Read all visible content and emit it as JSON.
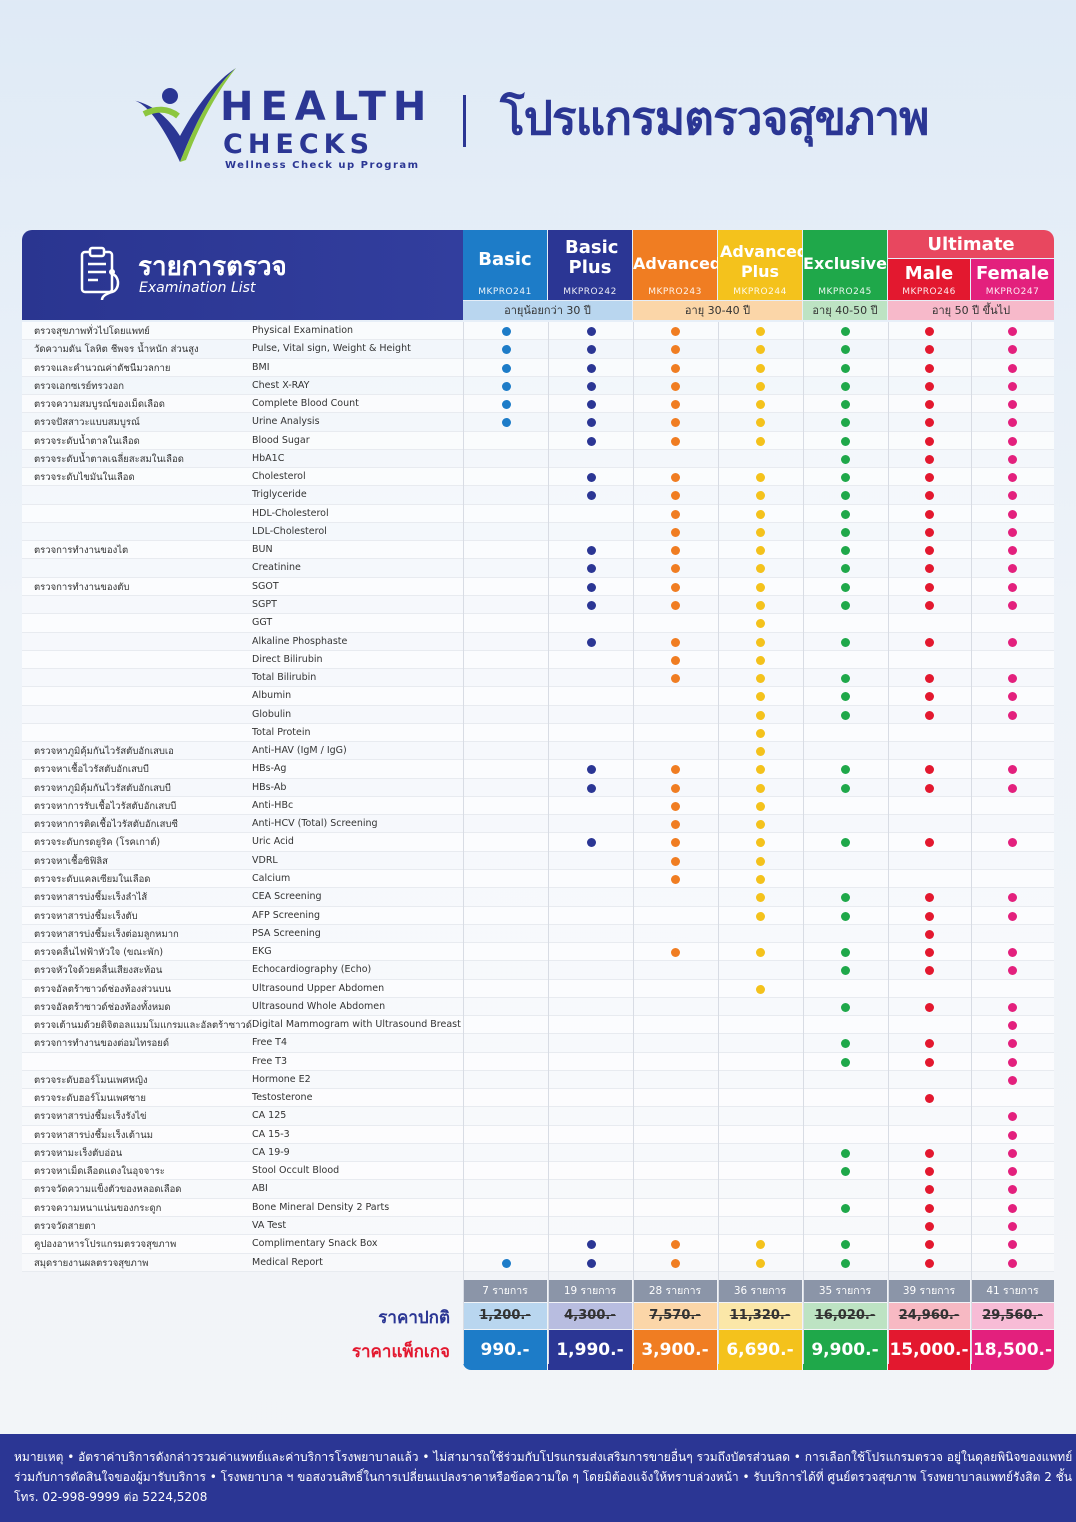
{
  "header": {
    "logo_word1": "HEALTH",
    "logo_word2": "CHECKS",
    "logo_sub": "Wellness Check up Program",
    "title": "โปรแกรมตรวจสุขภาพ"
  },
  "list_header": {
    "title": "รายการตรวจ",
    "subtitle": "Examination List"
  },
  "colors": {
    "basic": "#1d7cc8",
    "basic_plus": "#2b3694",
    "advanced": "#f07d22",
    "advanced_plus": "#f4c21c",
    "exclusive": "#1fa84a",
    "male": "#e3182f",
    "female": "#e3207d"
  },
  "ultimate_label": "Ultimate",
  "packages": [
    {
      "name": "Basic",
      "code": "MKPRO241"
    },
    {
      "name": "Basic Plus",
      "code": "MKPRO242"
    },
    {
      "name": "Advanced",
      "code": "MKPRO243"
    },
    {
      "name": "Advanced Plus",
      "code": "MKPRO244"
    },
    {
      "name": "Exclusive",
      "code": "MKPRO245"
    },
    {
      "name": "Male",
      "code": "MKPRO246"
    },
    {
      "name": "Female",
      "code": "MKPRO247"
    }
  ],
  "age_groups": [
    "อายุน้อยกว่า 30 ปี",
    "อายุ 30-40 ปี",
    "อายุ 40-50 ปี",
    "อายุ 50 ปี ขึ้นไป"
  ],
  "rows": [
    {
      "th": "ตรวจสุขภาพทั่วไปโดยแพทย์",
      "en": "Physical Examination",
      "p": [
        1,
        1,
        1,
        1,
        1,
        1,
        1
      ]
    },
    {
      "th": "วัดความดัน โลหิต ชีพจร น้ำหนัก ส่วนสูง",
      "en": "Pulse, Vital sign, Weight & Height",
      "p": [
        1,
        1,
        1,
        1,
        1,
        1,
        1
      ]
    },
    {
      "th": "ตรวจและคำนวณค่าดัชนีมวลกาย",
      "en": "BMI",
      "p": [
        1,
        1,
        1,
        1,
        1,
        1,
        1
      ]
    },
    {
      "th": "ตรวจเอกซเรย์ทรวงอก",
      "en": "Chest X-RAY",
      "p": [
        1,
        1,
        1,
        1,
        1,
        1,
        1
      ]
    },
    {
      "th": "ตรวจความสมบูรณ์ของเม็ดเลือด",
      "en": "Complete Blood Count",
      "p": [
        1,
        1,
        1,
        1,
        1,
        1,
        1
      ]
    },
    {
      "th": "ตรวจปัสสาวะแบบสมบูรณ์",
      "en": "Urine Analysis",
      "p": [
        1,
        1,
        1,
        1,
        1,
        1,
        1
      ]
    },
    {
      "th": "ตรวจระดับน้ำตาลในเลือด",
      "en": "Blood Sugar",
      "p": [
        0,
        1,
        1,
        1,
        1,
        1,
        1
      ]
    },
    {
      "th": "ตรวจระดับน้ำตาลเฉลี่ยสะสมในเลือด",
      "en": "HbA1C",
      "p": [
        0,
        0,
        0,
        0,
        1,
        1,
        1
      ]
    },
    {
      "th": "ตรวจระดับไขมันในเลือด",
      "en": "Cholesterol",
      "p": [
        0,
        1,
        1,
        1,
        1,
        1,
        1
      ]
    },
    {
      "th": "",
      "en": "Triglyceride",
      "p": [
        0,
        1,
        1,
        1,
        1,
        1,
        1
      ]
    },
    {
      "th": "",
      "en": "HDL-Cholesterol",
      "p": [
        0,
        0,
        1,
        1,
        1,
        1,
        1
      ]
    },
    {
      "th": "",
      "en": "LDL-Cholesterol",
      "p": [
        0,
        0,
        1,
        1,
        1,
        1,
        1
      ]
    },
    {
      "th": "ตรวจการทำงานของไต",
      "en": "BUN",
      "p": [
        0,
        1,
        1,
        1,
        1,
        1,
        1
      ]
    },
    {
      "th": "",
      "en": "Creatinine",
      "p": [
        0,
        1,
        1,
        1,
        1,
        1,
        1
      ]
    },
    {
      "th": "ตรวจการทำงานของตับ",
      "en": "SGOT",
      "p": [
        0,
        1,
        1,
        1,
        1,
        1,
        1
      ]
    },
    {
      "th": "",
      "en": "SGPT",
      "p": [
        0,
        1,
        1,
        1,
        1,
        1,
        1
      ]
    },
    {
      "th": "",
      "en": "GGT",
      "p": [
        0,
        0,
        0,
        1,
        0,
        0,
        0
      ]
    },
    {
      "th": "",
      "en": "Alkaline Phosphaste",
      "p": [
        0,
        1,
        1,
        1,
        1,
        1,
        1
      ]
    },
    {
      "th": "",
      "en": "Direct Bilirubin",
      "p": [
        0,
        0,
        1,
        1,
        0,
        0,
        0
      ]
    },
    {
      "th": "",
      "en": "Total Bilirubin",
      "p": [
        0,
        0,
        1,
        1,
        1,
        1,
        1
      ]
    },
    {
      "th": "",
      "en": "Albumin",
      "p": [
        0,
        0,
        0,
        1,
        1,
        1,
        1
      ]
    },
    {
      "th": "",
      "en": "Globulin",
      "p": [
        0,
        0,
        0,
        1,
        1,
        1,
        1
      ]
    },
    {
      "th": "",
      "en": "Total Protein",
      "p": [
        0,
        0,
        0,
        1,
        0,
        0,
        0
      ]
    },
    {
      "th": "ตรวจหาภูมิคุ้มกันไวรัสตับอักเสบเอ",
      "en": "Anti-HAV (IgM / IgG)",
      "p": [
        0,
        0,
        0,
        1,
        0,
        0,
        0
      ]
    },
    {
      "th": "ตรวจหาเชื้อไวรัสตับอักเสบบี",
      "en": "HBs-Ag",
      "p": [
        0,
        1,
        1,
        1,
        1,
        1,
        1
      ]
    },
    {
      "th": "ตรวจหาภูมิคุ้มกันไวรัสตับอักเสบบี",
      "en": "HBs-Ab",
      "p": [
        0,
        1,
        1,
        1,
        1,
        1,
        1
      ]
    },
    {
      "th": "ตรวจหาการรับเชื้อไวรัสตับอักเสบบี",
      "en": "Anti-HBc",
      "p": [
        0,
        0,
        1,
        1,
        0,
        0,
        0
      ]
    },
    {
      "th": "ตรวจหาการติดเชื้อไวรัสตับอักเสบซี",
      "en": "Anti-HCV (Total) Screening",
      "p": [
        0,
        0,
        1,
        1,
        0,
        0,
        0
      ]
    },
    {
      "th": "ตรวจระดับกรดยูริค (โรคเกาต์)",
      "en": "Uric Acid",
      "p": [
        0,
        1,
        1,
        1,
        1,
        1,
        1
      ]
    },
    {
      "th": "ตรวจหาเชื้อซิฟิลิส",
      "en": "VDRL",
      "p": [
        0,
        0,
        1,
        1,
        0,
        0,
        0
      ]
    },
    {
      "th": "ตรวจระดับแคลเซียมในเลือด",
      "en": "Calcium",
      "p": [
        0,
        0,
        1,
        1,
        0,
        0,
        0
      ]
    },
    {
      "th": "ตรวจหาสารบ่งชี้มะเร็งลำไส้",
      "en": "CEA Screening",
      "p": [
        0,
        0,
        0,
        1,
        1,
        1,
        1
      ]
    },
    {
      "th": "ตรวจหาสารบ่งชี้มะเร็งตับ",
      "en": "AFP Screening",
      "p": [
        0,
        0,
        0,
        1,
        1,
        1,
        1
      ]
    },
    {
      "th": "ตรวจหาสารบ่งชี้มะเร็งต่อมลูกหมาก",
      "en": "PSA Screening",
      "p": [
        0,
        0,
        0,
        0,
        0,
        1,
        0
      ]
    },
    {
      "th": "ตรวจคลื่นไฟฟ้าหัวใจ (ขณะพัก)",
      "en": "EKG",
      "p": [
        0,
        0,
        1,
        1,
        1,
        1,
        1
      ]
    },
    {
      "th": "ตรวจหัวใจด้วยคลื่นเสียงสะท้อน",
      "en": "Echocardiography (Echo)",
      "p": [
        0,
        0,
        0,
        0,
        1,
        1,
        1
      ]
    },
    {
      "th": "ตรวจอัลตร้าซาวด์ช่องท้องส่วนบน",
      "en": "Ultrasound Upper Abdomen",
      "p": [
        0,
        0,
        0,
        1,
        0,
        0,
        0
      ]
    },
    {
      "th": "ตรวจอัลตร้าซาวด์ช่องท้องทั้งหมด",
      "en": "Ultrasound Whole Abdomen",
      "p": [
        0,
        0,
        0,
        0,
        1,
        1,
        1
      ]
    },
    {
      "th": "ตรวจเต้านมด้วยดิจิตอลแมมโมแกรมและอัลตร้าซาวด์",
      "en": "Digital Mammogram with Ultrasound Breast",
      "p": [
        0,
        0,
        0,
        0,
        0,
        0,
        1
      ]
    },
    {
      "th": "ตรวจการทำงานของต่อมไทรอยด์",
      "en": "Free T4",
      "p": [
        0,
        0,
        0,
        0,
        1,
        1,
        1
      ]
    },
    {
      "th": "",
      "en": "Free T3",
      "p": [
        0,
        0,
        0,
        0,
        1,
        1,
        1
      ]
    },
    {
      "th": "ตรวจระดับฮอร์โมนเพศหญิง",
      "en": "Hormone  E2",
      "p": [
        0,
        0,
        0,
        0,
        0,
        0,
        1
      ]
    },
    {
      "th": "ตรวจระดับฮอร์โมนเพศชาย",
      "en": "Testosterone",
      "p": [
        0,
        0,
        0,
        0,
        0,
        1,
        0
      ]
    },
    {
      "th": "ตรวจหาสารบ่งชี้มะเร็งรังไข่",
      "en": "CA 125",
      "p": [
        0,
        0,
        0,
        0,
        0,
        0,
        1
      ]
    },
    {
      "th": "ตรวจหาสารบ่งชี้มะเร็งเต้านม",
      "en": "CA 15-3",
      "p": [
        0,
        0,
        0,
        0,
        0,
        0,
        1
      ]
    },
    {
      "th": "ตรวจหามะเร็งตับอ่อน",
      "en": "CA 19-9",
      "p": [
        0,
        0,
        0,
        0,
        1,
        1,
        1
      ]
    },
    {
      "th": "ตรวจหาเม็ดเลือดแดงในอุจจาระ",
      "en": "Stool Occult Blood",
      "p": [
        0,
        0,
        0,
        0,
        1,
        1,
        1
      ]
    },
    {
      "th": "ตรวจวัดความแข็งตัวของหลอดเลือด",
      "en": "ABI",
      "p": [
        0,
        0,
        0,
        0,
        0,
        1,
        1
      ]
    },
    {
      "th": "ตรวจความหนาแน่นของกระดูก",
      "en": "Bone Mineral Density 2 Parts",
      "p": [
        0,
        0,
        0,
        0,
        1,
        1,
        1
      ]
    },
    {
      "th": "ตรวจวัดสายตา",
      "en": "VA Test",
      "p": [
        0,
        0,
        0,
        0,
        0,
        1,
        1
      ]
    },
    {
      "th": "คูปองอาหารโปรแกรมตรวจสุขภาพ",
      "en": "Complimentary Snack Box",
      "p": [
        0,
        1,
        1,
        1,
        1,
        1,
        1
      ]
    },
    {
      "th": "สมุดรายงานผลตรวจสุขภาพ",
      "en": "Medical Report",
      "p": [
        1,
        1,
        1,
        1,
        1,
        1,
        1
      ]
    }
  ],
  "counts": [
    "7 รายการ",
    "19 รายการ",
    "28 รายการ",
    "36 รายการ",
    "35 รายการ",
    "39 รายการ",
    "41 รายการ"
  ],
  "regular_label": "ราคาปกติ",
  "regular_prices": [
    "1,200.-",
    "4,300.-",
    "7,570.-",
    "11,320.-",
    "16,020.-",
    "24,960.-",
    "29,560.-"
  ],
  "package_label": "ราคาแพ็กเกจ",
  "package_prices": [
    "990.-",
    "1,990.-",
    "3,900.-",
    "6,690.-",
    "9,900.-",
    "15,000.-",
    "18,500.-"
  ],
  "note": {
    "line1": "หมายเหตุ • อัตราค่าบริการดังกล่าวรวมค่าแพทย์และค่าบริการโรงพยาบาลแล้ว • ไม่สามารถใช้ร่วมกับโปรแกรมส่งเสริมการขายอื่นๆ รวมถึงบัตรส่วนลด • การเลือกใช้โปรแกรมตรวจ อยู่ในดุลยพินิจของแพทย์",
    "line2": "ร่วมกับการตัดสินใจของผู้มารับบริการ • โรงพยาบาล ฯ ขอสงวนสิทธิ์ในการเปลี่ยนแปลงราคาหรือข้อความใด ๆ โดยมิต้องแจ้งให้ทราบล่วงหน้า • รับบริการได้ที่ ศูนย์ตรวจสุขภาพ โรงพยาบาลแพทย์รังสิต 2 ชั้น 2",
    "line3": "โทร. 02-998-9999 ต่อ 5224,5208"
  }
}
